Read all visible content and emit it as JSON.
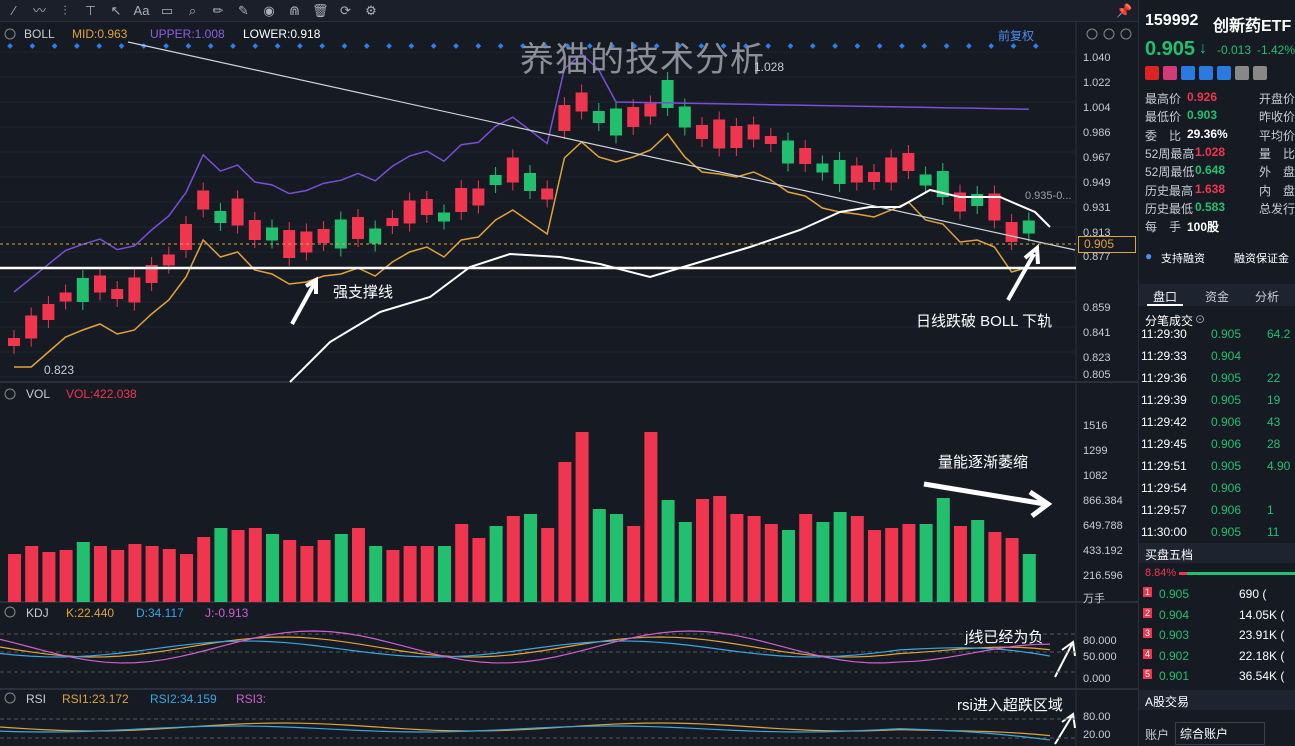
{
  "toolbar": {
    "icons": [
      "line-tool-icon",
      "polyline-tool-icon",
      "fib-tool-icon",
      "text-tool-icon",
      "cursor-icon",
      "text-label-icon",
      "comment-icon",
      "zoom-icon",
      "ruler-icon",
      "pen-icon",
      "eye-icon",
      "magnet-icon",
      "trash-icon",
      "reset-icon",
      "settings-icon"
    ],
    "text_tool": "Aa"
  },
  "watermark": "养猫的技术分析",
  "boll": {
    "name": "BOLL",
    "mid": "MID:0.963",
    "upper": "UPPER:1.008",
    "lower": "LOWER:0.918",
    "adjust": "前复权",
    "high_label": "1.028",
    "low_label": "0.823",
    "last_label": "0.935-0...",
    "current_price": "0.905",
    "axis": [
      "1.040",
      "1.022",
      "1.004",
      "0.986",
      "0.967",
      "0.949",
      "0.931",
      "0.913",
      "0.895",
      "0.877",
      "0.859",
      "0.841",
      "0.823",
      "0.805"
    ]
  },
  "annotations": {
    "support": "强支撑线",
    "break": "日线跌破 BOLL 下轨",
    "volume": "量能逐渐萎缩",
    "kdj": "j线已经为负",
    "rsi": "rsi进入超跌区域"
  },
  "vol": {
    "name": "VOL",
    "value": "VOL:422.038",
    "axis": [
      "1516",
      "1299",
      "1082",
      "866.384",
      "649.788",
      "433.192",
      "216.596",
      "万手"
    ]
  },
  "kdj": {
    "name": "KDJ",
    "k": "K:22.440",
    "d": "D:34.117",
    "j": "J:-0.913",
    "axis": [
      "80.000",
      "50.000",
      "0.000"
    ]
  },
  "rsi": {
    "name": "RSI",
    "rsi1": "RSI1:23.172",
    "rsi2": "RSI2:34.159",
    "rsi3": "RSI3:",
    "axis": [
      "80.00",
      "20.00"
    ]
  },
  "chart_data": {
    "type": "candlestick",
    "volumes": [
      480,
      560,
      500,
      520,
      600,
      560,
      520,
      580,
      560,
      530,
      480,
      650,
      740,
      720,
      740,
      680,
      620,
      560,
      620,
      680,
      740,
      560,
      520,
      560,
      560,
      560,
      780,
      640,
      760,
      860,
      880,
      740,
      1400,
      1700,
      930,
      880,
      760,
      1700,
      1020,
      800,
      1030,
      1060,
      880,
      860,
      780,
      720,
      880,
      800,
      900,
      860,
      720,
      740,
      780,
      780,
      1040,
      760,
      820,
      700,
      640,
      480
    ]
  },
  "right": {
    "code": "159992",
    "name": "创新药ETF",
    "price": "0.905",
    "change": "-0.013",
    "pct": "-1.42%",
    "quote_left": [
      [
        "最高价",
        "0.926",
        "red"
      ],
      [
        "最低价",
        "0.903",
        "green"
      ],
      [
        "委　比",
        "29.36%",
        "white"
      ],
      [
        "52周最高",
        "1.028",
        "red"
      ],
      [
        "52周最低",
        "0.648",
        "green"
      ],
      [
        "历史最高",
        "1.638",
        "red"
      ],
      [
        "历史最低",
        "0.583",
        "green"
      ],
      [
        "每　手",
        "100股",
        "white"
      ]
    ],
    "quote_right": [
      "开盘价",
      "昨收价",
      "平均价",
      "量　比",
      "外　盘",
      "内　盘",
      "总发行"
    ],
    "margin": "支持融资",
    "margin2": "融资保证金",
    "tabs": [
      "盘口",
      "资金",
      "分析"
    ],
    "ticks_title": "分笔成交",
    "ticks": [
      [
        "11:29:30",
        "0.905",
        "64.2"
      ],
      [
        "11:29:33",
        "0.904",
        ""
      ],
      [
        "11:29:36",
        "0.905",
        "22"
      ],
      [
        "11:29:39",
        "0.905",
        "19"
      ],
      [
        "11:29:42",
        "0.906",
        "43"
      ],
      [
        "11:29:45",
        "0.906",
        "28"
      ],
      [
        "11:29:51",
        "0.905",
        "4.90"
      ],
      [
        "11:29:54",
        "0.906",
        ""
      ],
      [
        "11:29:57",
        "0.906",
        "1"
      ],
      [
        "11:30:00",
        "0.905",
        "11"
      ]
    ],
    "bid_title": "买盘五档",
    "bid_pct": "8.84%",
    "bids": [
      [
        "1",
        "0.905",
        "690 ("
      ],
      [
        "2",
        "0.904",
        "14.05K ("
      ],
      [
        "3",
        "0.903",
        "23.91K ("
      ],
      [
        "4",
        "0.902",
        "22.18K ("
      ],
      [
        "5",
        "0.901",
        "36.54K ("
      ]
    ],
    "trade_title": "A股交易",
    "account_label": "账户",
    "account": "综合账户"
  }
}
